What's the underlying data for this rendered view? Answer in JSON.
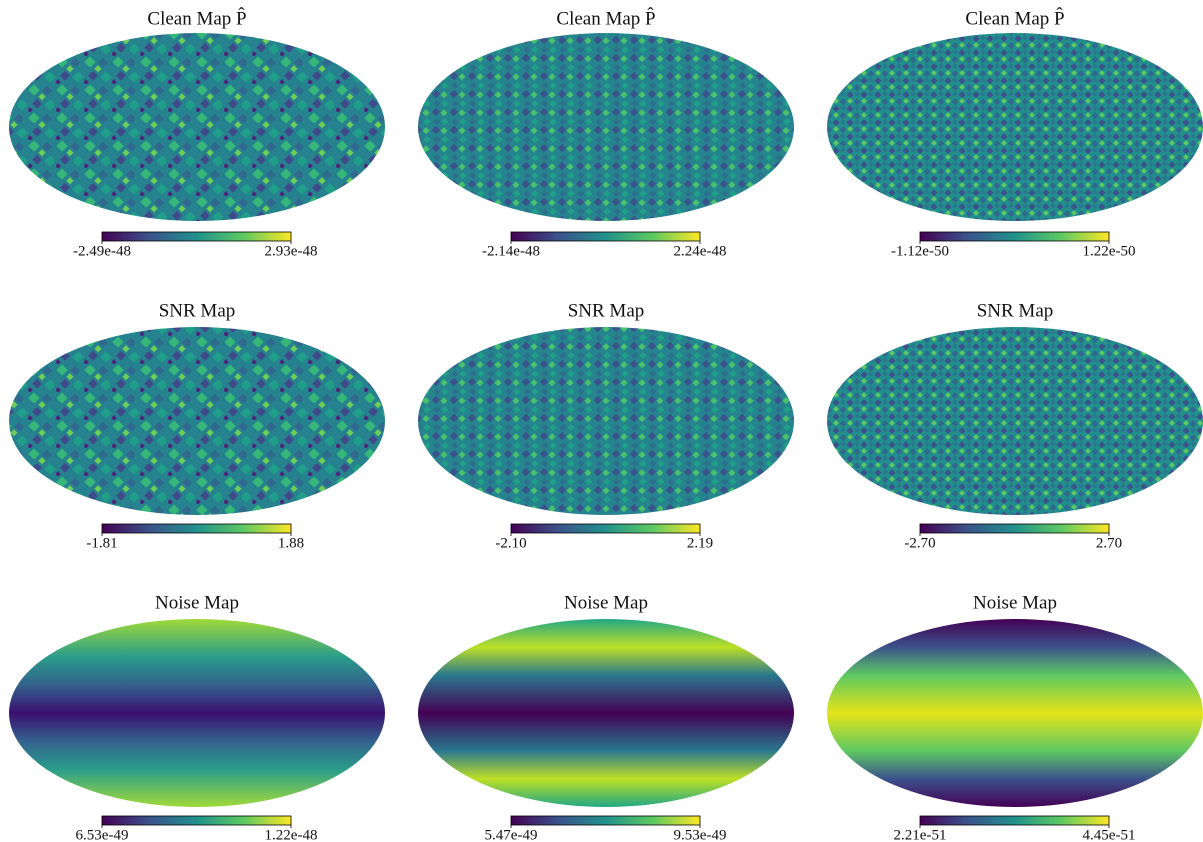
{
  "chart_data": [
    {
      "type": "map",
      "title": "Clean Map P̂",
      "clim": [
        -2.49e-48,
        2.93e-48
      ],
      "cticks": [
        -2.49e-48,
        2.93e-48
      ]
    },
    {
      "type": "map",
      "title": "Clean Map P̂",
      "clim": [
        -2.14e-48,
        2.24e-48
      ],
      "cticks": [
        -2.14e-48,
        2.24e-48
      ]
    },
    {
      "type": "map",
      "title": "Clean Map P̂",
      "clim": [
        -1.12e-50,
        1.22e-50
      ],
      "cticks": [
        -1.12e-50,
        1.22e-50
      ]
    },
    {
      "type": "map",
      "title": "SNR Map",
      "clim": [
        -1.81,
        1.88
      ],
      "cticks": [
        -1.81,
        1.88
      ]
    },
    {
      "type": "map",
      "title": "SNR Map",
      "clim": [
        -2.1,
        2.19
      ],
      "cticks": [
        {
          "value": -2.1,
          "label": "-2.10"
        },
        2.19
      ]
    },
    {
      "type": "map",
      "title": "SNR Map",
      "clim": [
        -2.7,
        2.7
      ],
      "cticks": [
        {
          "value": -2.7,
          "label": "-2.70"
        },
        {
          "value": 2.7,
          "label": "2.70"
        }
      ]
    },
    {
      "type": "map",
      "title": "Noise Map",
      "clim": [
        6.53e-49,
        1.22e-48
      ],
      "cticks": [
        6.53e-49,
        1.22e-48
      ]
    },
    {
      "type": "map",
      "title": "Noise Map",
      "clim": [
        5.47e-49,
        9.53e-49
      ],
      "cticks": [
        5.47e-49,
        9.53e-49
      ]
    },
    {
      "type": "map",
      "title": "Noise Map",
      "clim": [
        2.21e-51,
        4.45e-51
      ],
      "cticks": [
        2.21e-51,
        4.45e-51
      ]
    }
  ]
}
